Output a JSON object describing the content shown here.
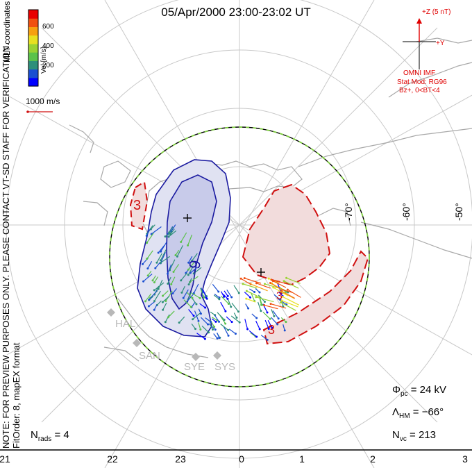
{
  "title": "05/Apr/2000 23:00-23:02 UT",
  "colorbar": {
    "label": "Vel [m/s]",
    "ticks": [
      "600",
      "400",
      "200"
    ],
    "colors": [
      "#0000ff",
      "#1a4fd1",
      "#2e8f7a",
      "#5bc24a",
      "#9ad232",
      "#e8e020",
      "#f6a010",
      "#f05010",
      "#e80000"
    ]
  },
  "coordinates_label": "MLT coordinates",
  "scale_vector_label": "1000 m/s",
  "note": "NOTE: FOR PREVIEW PURPOSES ONLY. PLEASE CONTACT VT-SD STAFF FOR VERIFICATION.",
  "fit_order": "FitOrder: 8, mapEX format",
  "imf": {
    "z_label": "+Z (5 nT)",
    "y_label": "+Y",
    "source": "OMNI IMF",
    "model": "Stat Mod: RG96",
    "condition": "Bz+, 0<BT<4"
  },
  "latitude_labels": [
    "-70°",
    "-60°",
    "-50°"
  ],
  "contour_labels": [
    "-9",
    "3",
    "3",
    "3"
  ],
  "stations": [
    "HAL",
    "SAN",
    "SYE",
    "SYS"
  ],
  "mlt_labels": [
    "21",
    "22",
    "23",
    "0",
    "1",
    "2",
    "3"
  ],
  "stats": {
    "phi_symbol": "Φ",
    "phi_sub": "pc",
    "phi_value": "= 24 kV",
    "lambda_symbol": "Λ",
    "lambda_sub": "HM",
    "lambda_value": "= −66°",
    "nvc_symbol": "N",
    "nvc_sub": "vc",
    "nvc_value": "= 213",
    "nrads_symbol": "N",
    "nrads_sub": "rads",
    "nrads_value": "= 4"
  },
  "colors": {
    "negative_cell": "#1a1aa0",
    "positive_cell": "#d01010",
    "boundary": "#7fcf3f"
  }
}
